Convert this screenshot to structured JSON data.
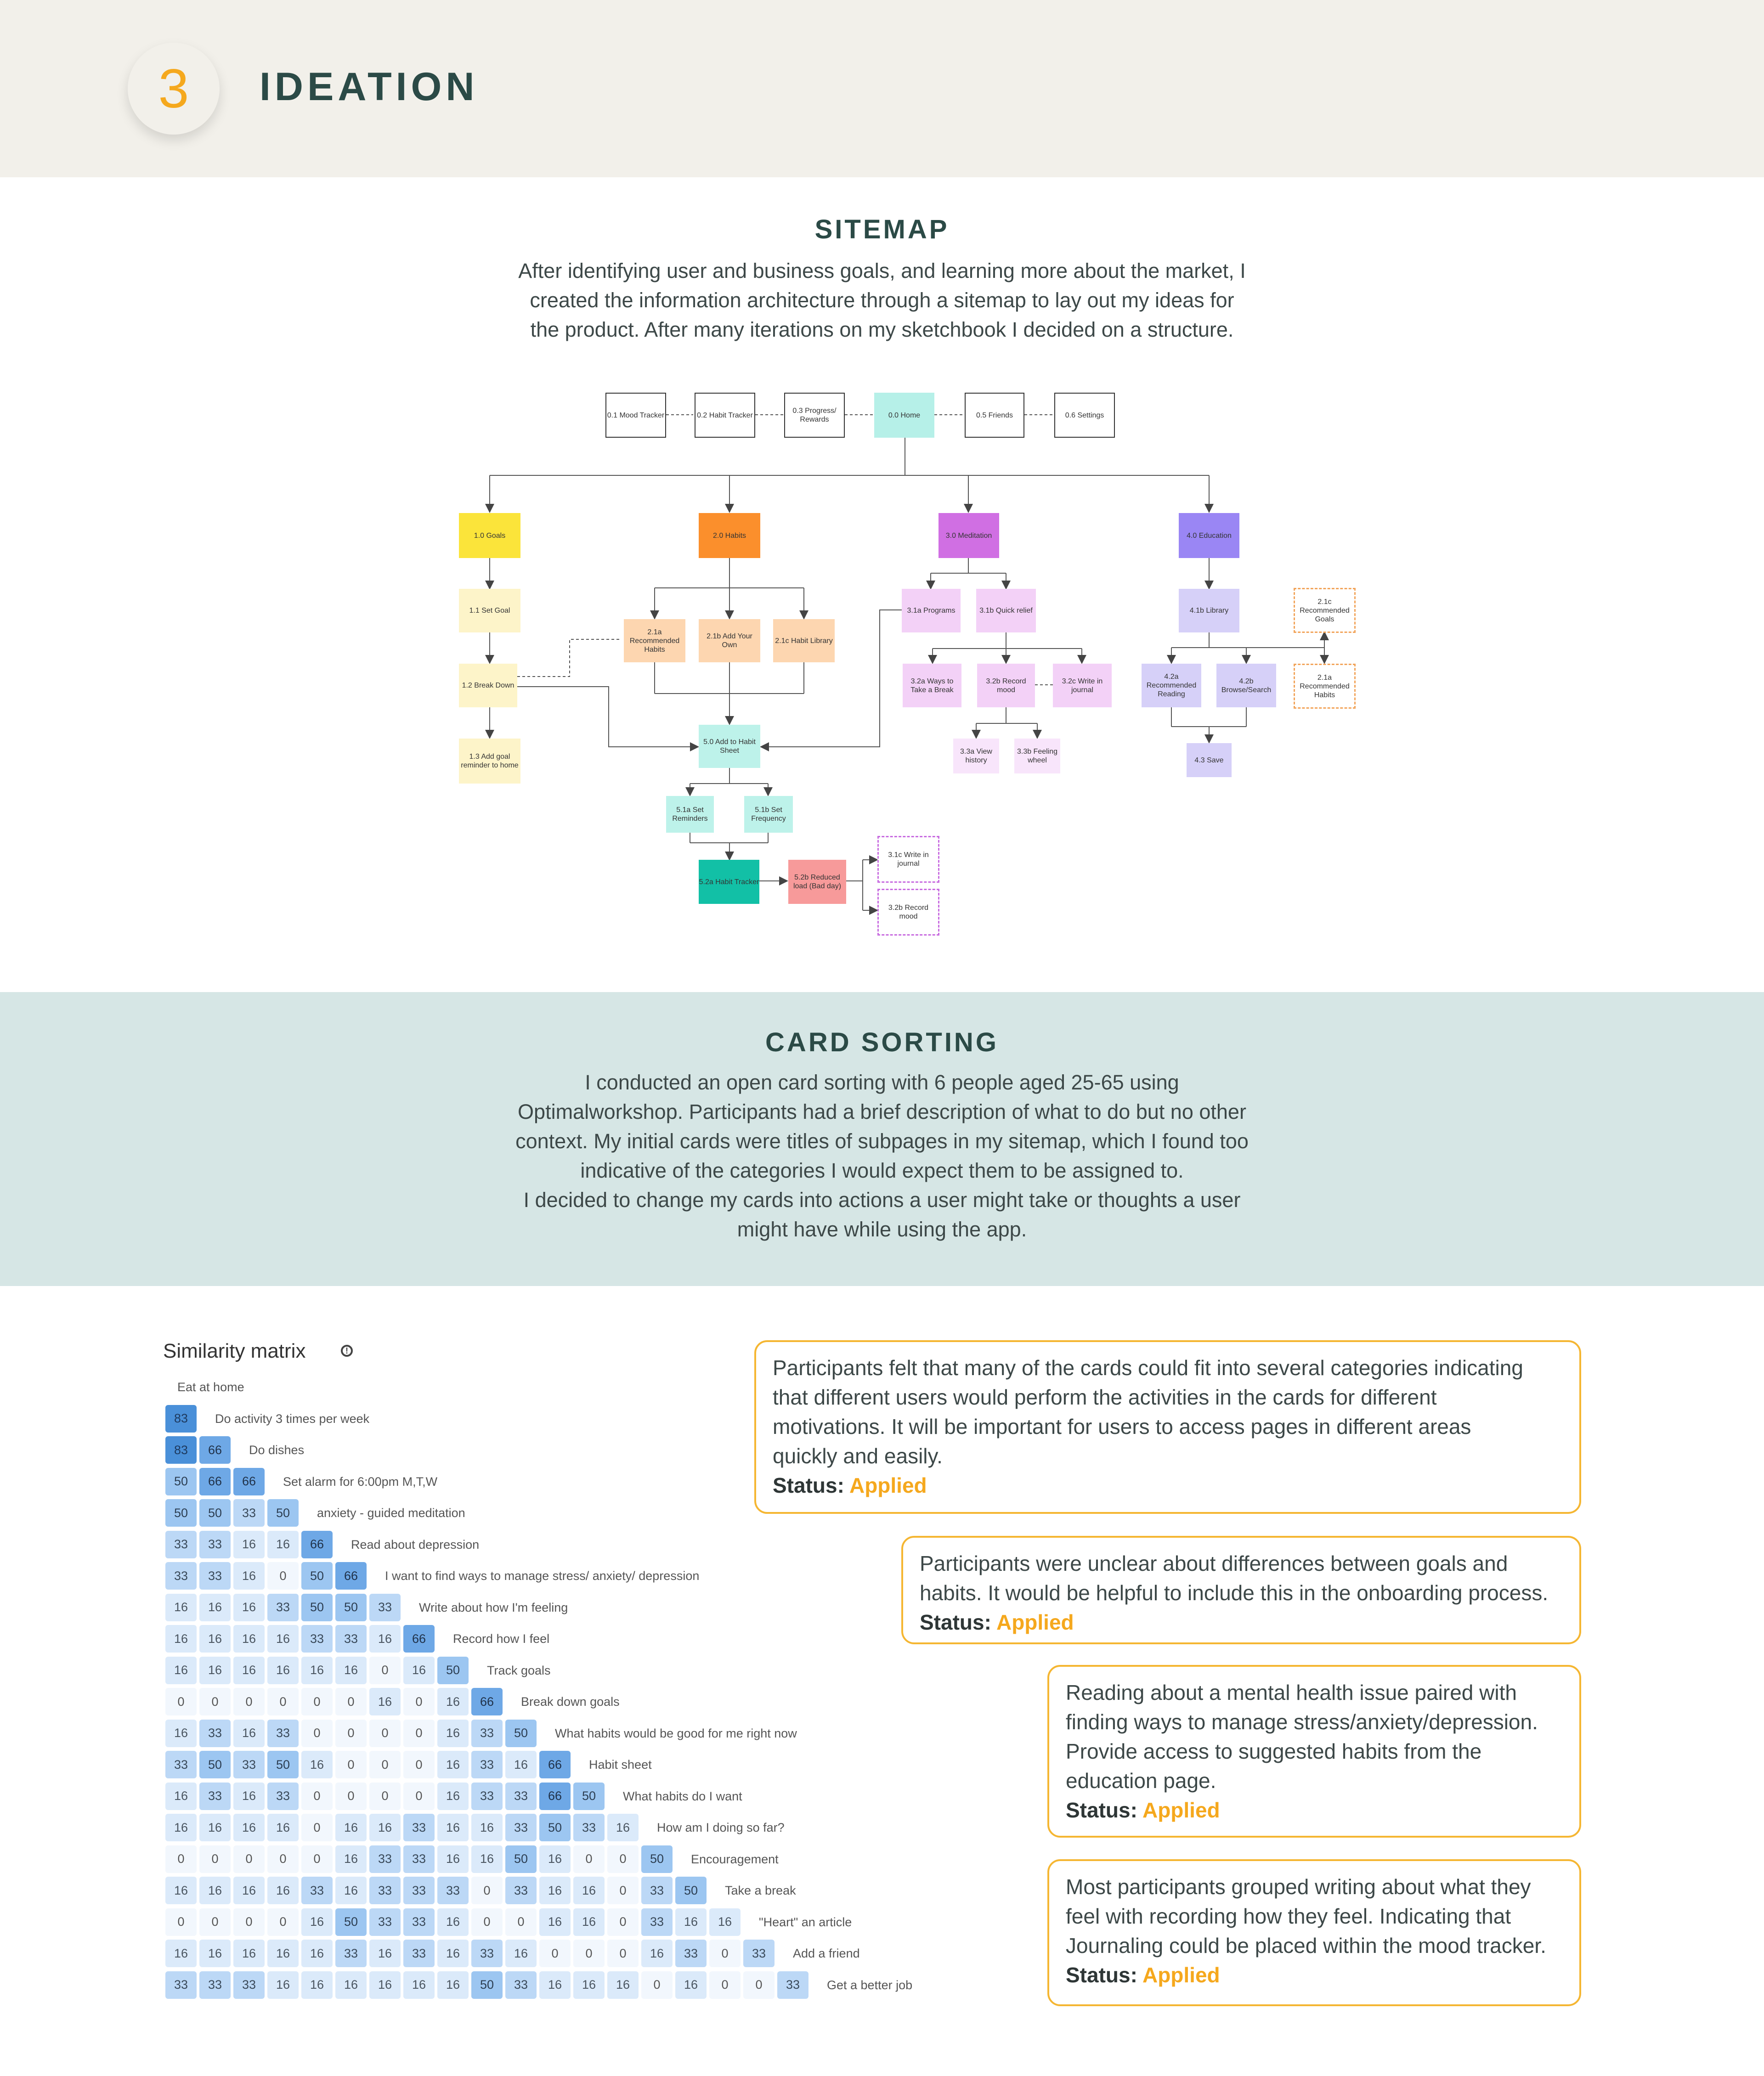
{
  "header": {
    "step_number": "3",
    "title": "IDEATION"
  },
  "sitemap": {
    "heading": "SITEMAP",
    "paragraph_lines": [
      "After identifying user and business goals, and learning more about the market, I",
      "created the information architecture through a sitemap to lay out my ideas for",
      "the product. After many iterations on my sketchbook I decided on a structure."
    ],
    "nodes": {
      "n01": "0.1 Mood Tracker",
      "n02": "0.2 Habit Tracker",
      "n03": "0.3 Progress/ Rewards",
      "n00": "0.0 Home",
      "n05": "0.5 Friends",
      "n06": "0.6 Settings",
      "n10": "1.0 Goals",
      "n20": "2.0 Habits",
      "n30": "3.0 Meditation",
      "n40": "4.0 Education",
      "n11": "1.1 Set Goal",
      "n12": "1.2 Break Down",
      "n13": "1.3 Add goal reminder to home",
      "n21a": "2.1a Recommended Habits",
      "n21b": "2.1b Add Your Own",
      "n21c": "2.1c Habit Library",
      "n31a": "3.1a Programs",
      "n31b": "3.1b Quick relief",
      "n32a": "3.2a  Ways to Take a Break",
      "n32b": "3.2b  Record mood",
      "n32c": "3.2c Write in journal",
      "n33a": "3.3a View history",
      "n33b": "3.3b Feeling wheel",
      "n41b": "4.1b Library",
      "n42a": "4.2a Recommended Reading",
      "n42b": "4.2b Browse/Search",
      "n43": "4.3 Save",
      "n21c_goals": "2.1c Recommended Goals",
      "n21a_habits": "2.1a Recommended Habits",
      "n50": "5.0 Add to Habit Sheet",
      "n51a": "5.1a Set Reminders",
      "n51b": "5.1b Set Frequency",
      "n52a": "5.2a Habit Tracker",
      "n52b": "5.2b Reduced load (Bad day)",
      "n31c": "3.1c Write in journal",
      "n32b_rec": "3.2b  Record mood"
    }
  },
  "card_sorting": {
    "heading": "CARD SORTING",
    "paragraph_lines": [
      "I conducted an open card sorting with 6 people aged 25-65 using",
      "Optimalworkshop. Participants had a brief description of what to do but no other",
      "context. My initial cards were titles of subpages in my sitemap, which I found too",
      "indicative of the categories I would expect them to be assigned to.",
      "I decided to change my cards into actions a user might take or thoughts a user",
      "might have while using the app."
    ]
  },
  "similarity_matrix": {
    "title": "Similarity matrix",
    "info_icon": "info-circle-icon",
    "cards": [
      "Eat at home",
      "Do activity 3 times per week",
      "Do dishes",
      "Set alarm for 6:00pm M,T,W",
      "anxiety - guided meditation",
      "Read about depression",
      "I want to find ways to manage stress/ anxiety/ depression",
      "Write about how I'm feeling",
      "Record how I feel",
      "Track goals",
      "Break down goals",
      "What habits would be good for me right now",
      "Habit sheet",
      "What habits do I want",
      "How am I doing so far?",
      "Encouragement",
      "Take a break",
      "\"Heart\" an article",
      "Add a friend",
      "Get a better job"
    ],
    "rows": [
      [],
      [
        83
      ],
      [
        83,
        66
      ],
      [
        50,
        66,
        66
      ],
      [
        50,
        50,
        33,
        50
      ],
      [
        33,
        33,
        16,
        16,
        66
      ],
      [
        33,
        33,
        16,
        0,
        50,
        66
      ],
      [
        16,
        16,
        16,
        33,
        50,
        50,
        33
      ],
      [
        16,
        16,
        16,
        16,
        33,
        33,
        16,
        66
      ],
      [
        16,
        16,
        16,
        16,
        16,
        16,
        0,
        16,
        50
      ],
      [
        0,
        0,
        0,
        0,
        0,
        0,
        16,
        0,
        16,
        66
      ],
      [
        16,
        33,
        16,
        33,
        0,
        0,
        0,
        0,
        16,
        33,
        50
      ],
      [
        33,
        50,
        33,
        50,
        16,
        0,
        0,
        0,
        16,
        33,
        16,
        66
      ],
      [
        16,
        33,
        16,
        33,
        0,
        0,
        0,
        0,
        16,
        33,
        33,
        66,
        50
      ],
      [
        16,
        16,
        16,
        16,
        0,
        16,
        16,
        33,
        16,
        16,
        33,
        50,
        33,
        16
      ],
      [
        0,
        0,
        0,
        0,
        0,
        16,
        33,
        33,
        16,
        16,
        50,
        16,
        0,
        0,
        50
      ],
      [
        16,
        16,
        16,
        16,
        33,
        16,
        33,
        33,
        33,
        0,
        33,
        16,
        16,
        0,
        33,
        50
      ],
      [
        0,
        0,
        0,
        0,
        16,
        50,
        33,
        33,
        16,
        0,
        0,
        16,
        16,
        0,
        33,
        16,
        16
      ],
      [
        16,
        16,
        16,
        16,
        16,
        33,
        16,
        33,
        16,
        33,
        16,
        0,
        0,
        0,
        16,
        33,
        0,
        33
      ],
      [
        33,
        33,
        33,
        16,
        16,
        16,
        16,
        16,
        16,
        50,
        33,
        16,
        16,
        16,
        0,
        16,
        0,
        0,
        33
      ]
    ]
  },
  "findings": [
    {
      "lines": [
        "Participants felt that many of the cards could fit into several categories indicating",
        "that different users would perform the activities in the cards for different",
        "motivations. It will be important for users to access pages in different areas",
        "quickly and easily."
      ],
      "status_label": "Status:",
      "status_value": "Applied"
    },
    {
      "lines": [
        "Participants were unclear about differences between goals and",
        "habits. It would be helpful to include this in the onboarding process."
      ],
      "status_label": "Status:",
      "status_value": "Applied"
    },
    {
      "lines": [
        "Reading about a mental health issue paired with",
        "finding ways to manage stress/anxiety/depression.",
        "Provide access to suggested habits from the",
        "education page."
      ],
      "status_label": "Status:",
      "status_value": "Applied"
    },
    {
      "lines": [
        "Most participants grouped writing about what they",
        "feel with recording how they feel. Indicating that",
        "Journaling could be placed within the mood tracker."
      ],
      "status_label": "Status:",
      "status_value": "Applied"
    }
  ],
  "colors": {
    "accent": "#f5a81d",
    "heading": "#2b4a46",
    "header_bg": "#f2f0ea",
    "band_bg": "#d6e6e5",
    "home": "#b6f0e8",
    "goals": "#fbe43a",
    "habits": "#fb8f2c",
    "meditation": "#d06fe3",
    "education": "#9a86f4",
    "goals_light": "#fdf4c9",
    "habits_light": "#fdd6b0",
    "meditation_light": "#f3d1f7",
    "education_light": "#d6d0f8",
    "habit_sheet": "#bdf2ea",
    "habit_tracker": "#12c0a6",
    "reduced_load": "#f79a9a"
  }
}
